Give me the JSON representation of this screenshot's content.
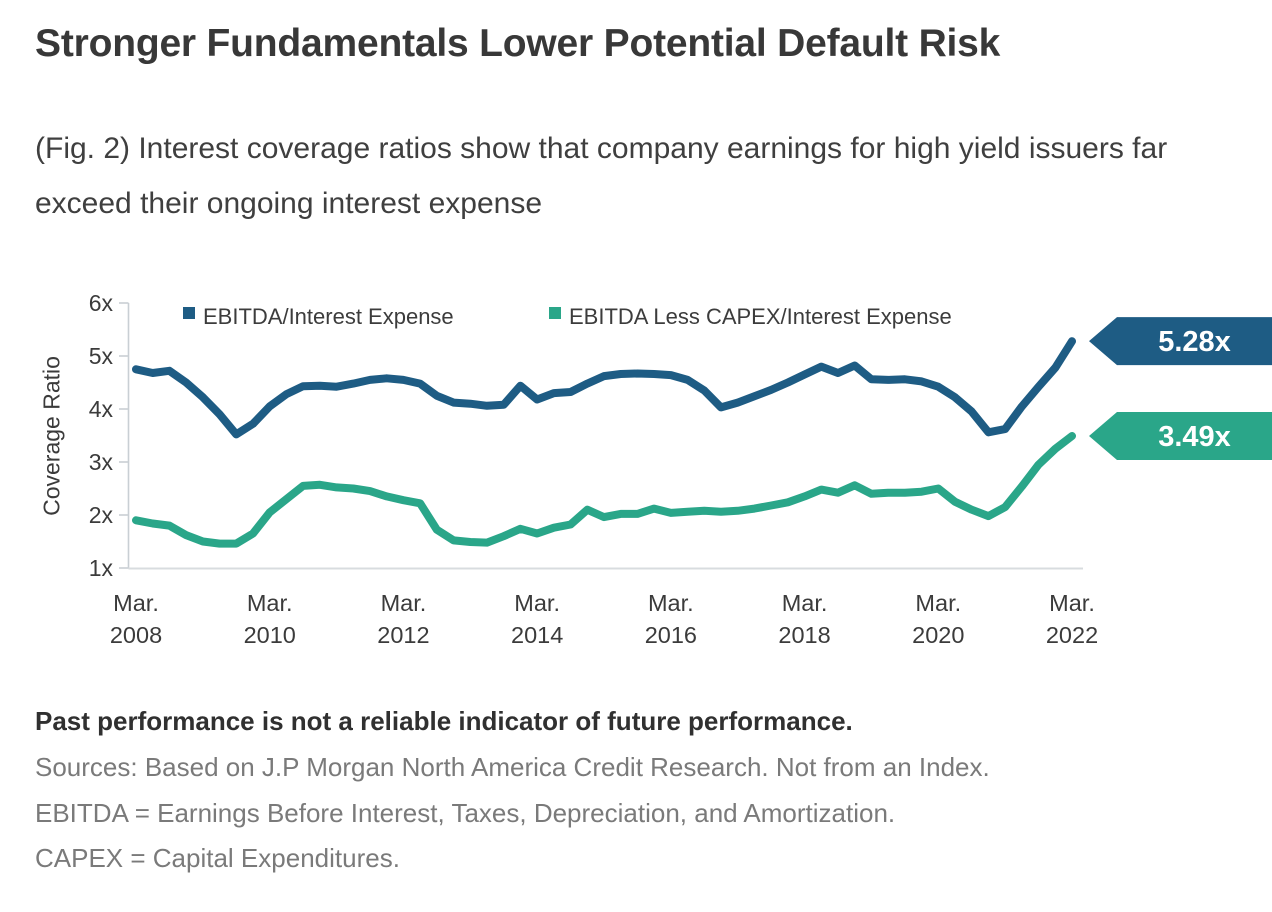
{
  "header": {
    "title": "Stronger Fundamentals Lower Potential Default Risk",
    "caption": "(Fig. 2) Interest coverage ratios show that company earnings for high yield issuers far exceed their ongoing interest expense"
  },
  "chart_data": {
    "type": "line",
    "title": "",
    "ylabel": "Coverage Ratio",
    "ylim": [
      1,
      6
    ],
    "grid": "none",
    "legend_position": "top-inside",
    "x_frequency": "quarterly",
    "x_range": [
      "Mar. 2008",
      "Mar. 2022"
    ],
    "y_ticks": [
      {
        "value": 6,
        "label": "6x"
      },
      {
        "value": 5,
        "label": "5x"
      },
      {
        "value": 4,
        "label": "4x"
      },
      {
        "value": 3,
        "label": "3x"
      },
      {
        "value": 2,
        "label": "2x"
      },
      {
        "value": 1,
        "label": "1x"
      }
    ],
    "x_ticks": [
      {
        "month": "Mar.",
        "year": "2008"
      },
      {
        "month": "Mar.",
        "year": "2010"
      },
      {
        "month": "Mar.",
        "year": "2012"
      },
      {
        "month": "Mar.",
        "year": "2014"
      },
      {
        "month": "Mar.",
        "year": "2016"
      },
      {
        "month": "Mar.",
        "year": "2018"
      },
      {
        "month": "Mar.",
        "year": "2020"
      },
      {
        "month": "Mar.",
        "year": "2022"
      }
    ],
    "series": [
      {
        "name": "EBITDA/Interest Expense",
        "color": "#1E5C84",
        "end_label": "5.28x",
        "end_value": 5.28,
        "values": [
          4.75,
          4.68,
          4.72,
          4.5,
          4.22,
          3.9,
          3.52,
          3.72,
          4.05,
          4.28,
          4.43,
          4.44,
          4.42,
          4.48,
          4.55,
          4.58,
          4.55,
          4.48,
          4.25,
          4.12,
          4.1,
          4.06,
          4.08,
          4.44,
          4.18,
          4.3,
          4.32,
          4.48,
          4.62,
          4.66,
          4.67,
          4.66,
          4.64,
          4.55,
          4.35,
          4.03,
          4.12,
          4.24,
          4.36,
          4.5,
          4.65,
          4.8,
          4.68,
          4.82,
          4.56,
          4.55,
          4.56,
          4.52,
          4.42,
          4.22,
          3.95,
          3.56,
          3.62,
          4.05,
          4.42,
          4.78,
          5.28
        ]
      },
      {
        "name": "EBITDA Less CAPEX/Interest Expense",
        "color": "#2AA689",
        "end_label": "3.49x",
        "end_value": 3.49,
        "values": [
          1.9,
          1.84,
          1.8,
          1.62,
          1.5,
          1.46,
          1.46,
          1.65,
          2.05,
          2.3,
          2.55,
          2.57,
          2.52,
          2.5,
          2.45,
          2.35,
          2.28,
          2.22,
          1.72,
          1.52,
          1.49,
          1.48,
          1.6,
          1.74,
          1.65,
          1.76,
          1.82,
          2.1,
          1.96,
          2.02,
          2.02,
          2.12,
          2.04,
          2.06,
          2.08,
          2.06,
          2.08,
          2.12,
          2.18,
          2.24,
          2.35,
          2.48,
          2.42,
          2.56,
          2.4,
          2.42,
          2.42,
          2.44,
          2.5,
          2.25,
          2.1,
          1.98,
          2.15,
          2.54,
          2.95,
          3.25,
          3.49
        ]
      }
    ]
  },
  "footnotes": {
    "disclaimer": "Past performance is not a reliable indicator of future performance.",
    "sources": "Sources: Based on J.P Morgan North America Credit Research. Not from an Index.",
    "ebitda_definition": "EBITDA = Earnings Before Interest, Taxes, Depreciation, and Amortization.",
    "capex_definition": "CAPEX = Capital Expenditures."
  },
  "colors": {
    "title_text": "#383838",
    "body_text": "#3F3F3F",
    "axis_text": "#3B3B3B",
    "legend_text": "#3C3C3C",
    "axis_line": "#C9CFD4",
    "baseline": "#D8DCDF",
    "footnote_gray": "#7A7A7A",
    "tag_text": "#FFFFFF"
  }
}
